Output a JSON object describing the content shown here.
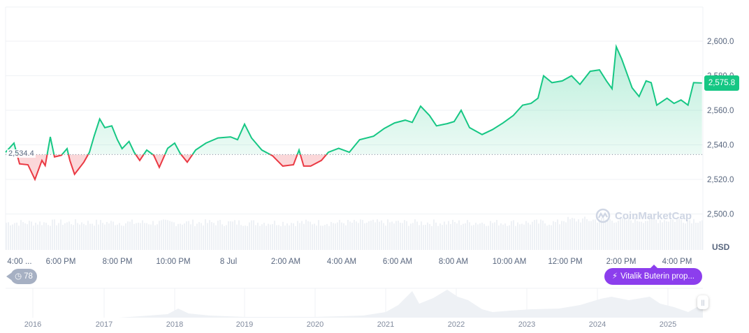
{
  "chart_data": {
    "type": "area",
    "currency": "USD",
    "ylim": [
      2484,
      2610
    ],
    "y_ticks": [
      "2,500.0",
      "2,520.0",
      "2,540.0",
      "2,560.0",
      "2,580.0",
      "2,600.0"
    ],
    "x_ticks": [
      "4:00 ...",
      "6:00 PM",
      "8:00 PM",
      "10:00 PM",
      "8 Jul",
      "2:00 AM",
      "4:00 AM",
      "6:00 AM",
      "8:00 AM",
      "10:00 AM",
      "12:00 PM",
      "2:00 PM",
      "4:00 PM"
    ],
    "baseline": 2534.4,
    "baseline_label": "2,534.4",
    "current_price_label": "2,575.8",
    "grid": true,
    "colors": {
      "up": "#16c784",
      "down": "#ea3943",
      "event": "#8c3eed"
    },
    "points": [
      [
        "7 Jul 15:30",
        2535.7
      ],
      [
        "7 Jul 15:48",
        2541
      ],
      [
        "7 Jul 16:00",
        2529
      ],
      [
        "7 Jul 16:18",
        2528.5
      ],
      [
        "7 Jul 16:33",
        2520
      ],
      [
        "7 Jul 16:48",
        2531
      ],
      [
        "7 Jul 16:55",
        2528
      ],
      [
        "7 Jul 17:06",
        2544.6
      ],
      [
        "7 Jul 17:15",
        2533
      ],
      [
        "7 Jul 17:30",
        2534
      ],
      [
        "7 Jul 17:42",
        2537.8
      ],
      [
        "7 Jul 17:48",
        2531
      ],
      [
        "7 Jul 17:58",
        2523
      ],
      [
        "7 Jul 18:18",
        2530
      ],
      [
        "7 Jul 18:30",
        2535.7
      ],
      [
        "7 Jul 18:40",
        2545
      ],
      [
        "7 Jul 18:52",
        2555
      ],
      [
        "7 Jul 19:03",
        2550
      ],
      [
        "7 Jul 19:18",
        2551
      ],
      [
        "7 Jul 19:30",
        2543
      ],
      [
        "7 Jul 19:40",
        2537.8
      ],
      [
        "7 Jul 19:55",
        2542
      ],
      [
        "7 Jul 20:06",
        2535.7
      ],
      [
        "7 Jul 20:18",
        2531
      ],
      [
        "7 Jul 20:33",
        2537
      ],
      [
        "7 Jul 20:48",
        2534
      ],
      [
        "7 Jul 21:00",
        2527
      ],
      [
        "7 Jul 21:18",
        2538
      ],
      [
        "7 Jul 21:33",
        2541
      ],
      [
        "7 Jul 21:45",
        2535
      ],
      [
        "7 Jul 22:00",
        2530
      ],
      [
        "7 Jul 22:18",
        2537
      ],
      [
        "7 Jul 22:40",
        2541
      ],
      [
        "7 Jul 23:06",
        2544
      ],
      [
        "7 Jul 23:33",
        2544.6
      ],
      [
        "7 Jul 23:48",
        2543
      ],
      [
        "8 Jul 00:03",
        2552
      ],
      [
        "8 Jul 00:18",
        2544
      ],
      [
        "8 Jul 00:40",
        2537
      ],
      [
        "8 Jul 01:03",
        2533.7
      ],
      [
        "8 Jul 01:25",
        2527.7
      ],
      [
        "8 Jul 01:48",
        2528.5
      ],
      [
        "8 Jul 02:00",
        2537
      ],
      [
        "8 Jul 02:10",
        2527.7
      ],
      [
        "8 Jul 02:25",
        2527.7
      ],
      [
        "8 Jul 02:48",
        2531
      ],
      [
        "8 Jul 03:03",
        2535.7
      ],
      [
        "8 Jul 03:25",
        2538
      ],
      [
        "8 Jul 03:48",
        2535.7
      ],
      [
        "8 Jul 04:10",
        2543
      ],
      [
        "8 Jul 04:40",
        2545
      ],
      [
        "8 Jul 05:03",
        2549.5
      ],
      [
        "8 Jul 05:25",
        2552.7
      ],
      [
        "8 Jul 05:48",
        2554.3
      ],
      [
        "8 Jul 06:03",
        2553
      ],
      [
        "8 Jul 06:21",
        2562.4
      ],
      [
        "8 Jul 06:40",
        2557
      ],
      [
        "8 Jul 06:55",
        2551
      ],
      [
        "8 Jul 07:18",
        2552.3
      ],
      [
        "8 Jul 07:33",
        2553.5
      ],
      [
        "8 Jul 07:48",
        2560
      ],
      [
        "8 Jul 08:06",
        2550
      ],
      [
        "8 Jul 08:33",
        2546
      ],
      [
        "8 Jul 08:55",
        2548.8
      ],
      [
        "8 Jul 09:18",
        2552.7
      ],
      [
        "8 Jul 09:40",
        2557
      ],
      [
        "8 Jul 10:00",
        2563
      ],
      [
        "8 Jul 10:18",
        2564
      ],
      [
        "8 Jul 10:33",
        2567
      ],
      [
        "8 Jul 10:45",
        2580
      ],
      [
        "8 Jul 11:03",
        2576
      ],
      [
        "8 Jul 11:25",
        2577
      ],
      [
        "8 Jul 11:45",
        2580
      ],
      [
        "8 Jul 12:03",
        2575
      ],
      [
        "8 Jul 12:25",
        2582.6
      ],
      [
        "8 Jul 12:45",
        2583.4
      ],
      [
        "8 Jul 13:00",
        2577
      ],
      [
        "8 Jul 13:12",
        2572.5
      ],
      [
        "8 Jul 13:21",
        2596.8
      ],
      [
        "8 Jul 13:33",
        2589.5
      ],
      [
        "8 Jul 13:55",
        2573
      ],
      [
        "8 Jul 14:10",
        2568
      ],
      [
        "8 Jul 14:25",
        2577
      ],
      [
        "8 Jul 14:36",
        2576
      ],
      [
        "8 Jul 14:48",
        2563
      ],
      [
        "8 Jul 15:10",
        2567
      ],
      [
        "8 Jul 15:25",
        2564
      ],
      [
        "8 Jul 15:40",
        2566
      ],
      [
        "8 Jul 15:55",
        2563
      ],
      [
        "8 Jul 16:07",
        2576
      ],
      [
        "8 Jul 16:25",
        2575.8
      ]
    ],
    "navigator": {
      "x_ticks": [
        "2016",
        "2017",
        "2018",
        "2019",
        "2020",
        "2021",
        "2022",
        "2023",
        "2024",
        "2025"
      ]
    }
  },
  "events": {
    "count": "78",
    "pill_label": "Vitalik Buterin prop..."
  },
  "watermark": "CoinMarketCap",
  "handle_glyph": "||"
}
